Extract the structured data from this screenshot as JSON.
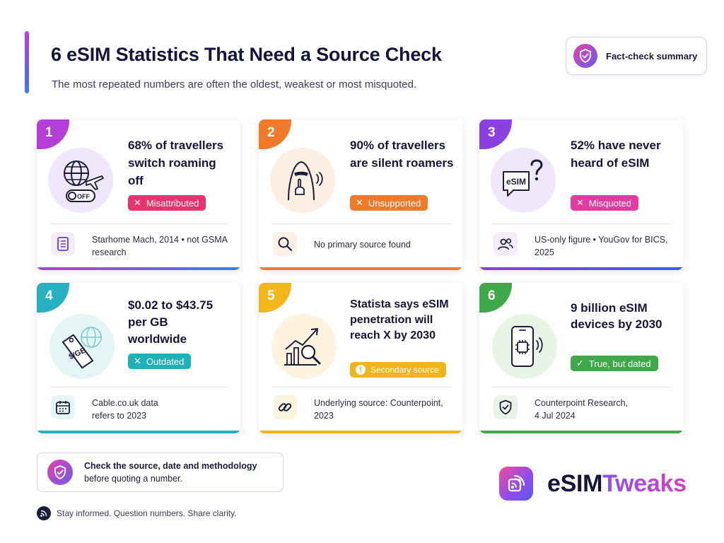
{
  "header": {
    "title": "6 eSIM Statistics That Need a Source Check",
    "subtitle": "The most repeated numbers are often the oldest, weakest or most misquoted.",
    "summary_button": "Fact-check summary"
  },
  "colors": {
    "card1": "#b43fd6",
    "card2": "#f0792a",
    "card3": "#8a3fe0",
    "card4": "#27b0bf",
    "card5": "#f2b51a",
    "card6": "#3ea84a",
    "misattributed": "#e8336e",
    "unsupported": "#f0792a",
    "misquoted": "#e23aa0",
    "outdated": "#1fb0b8",
    "secondary": "#f0b51a",
    "dated": "#3ea84a"
  },
  "cards": [
    {
      "number": "1",
      "stat": "68% of travellers switch roaming off",
      "badge": "Misattributed",
      "badge_mark": "✕",
      "source": "Starhome Mach, 2014 • not GSMA research",
      "icon": "globe-plane-off-icon",
      "source_icon": "document-icon"
    },
    {
      "number": "2",
      "stat": "90% of travellers are silent roamers",
      "badge": "Unsupported",
      "badge_mark": "✕",
      "source": "No primary source found",
      "icon": "silent-roamer-icon",
      "source_icon": "magnifier-icon"
    },
    {
      "number": "3",
      "stat": "52% have never heard of eSIM",
      "badge": "Misquoted",
      "badge_mark": "✕",
      "source": "US-only figure • YouGov for BICS, 2025",
      "icon": "esim-question-icon",
      "source_icon": "people-icon"
    },
    {
      "number": "4",
      "stat": "$0.02 to $43.75 per GB worldwide",
      "badge": "Outdated",
      "badge_mark": "✕",
      "source": "Cable.co.uk data refers to 2023",
      "icon": "price-tag-globe-icon",
      "price_tag_text": "$/GB",
      "source_icon": "calendar-icon"
    },
    {
      "number": "5",
      "stat": "Statista says eSIM penetration will reach X by 2030",
      "badge": "Secondary source",
      "badge_mark": "!",
      "source": "Underlying source: Counterpoint, 2023",
      "icon": "chart-magnifier-icon",
      "source_icon": "link-icon"
    },
    {
      "number": "6",
      "stat": "9 billion eSIM devices by 2030",
      "badge": "True, but dated",
      "badge_mark": "✓",
      "source": "Counterpoint Research, 4 Jul 2024",
      "icon": "phone-chip-icon",
      "source_icon": "shield-check-icon"
    }
  ],
  "icon_labels": {
    "off_toggle": "OFF",
    "esim_bubble": "eSIM"
  },
  "tip": {
    "line1": "Check the source, date and methodology",
    "line2": "before quoting a number."
  },
  "footer": {
    "text": "Stay informed. Question numbers. Share clarity."
  },
  "brand": {
    "part1": "eSIM",
    "part2": "Tweaks"
  }
}
